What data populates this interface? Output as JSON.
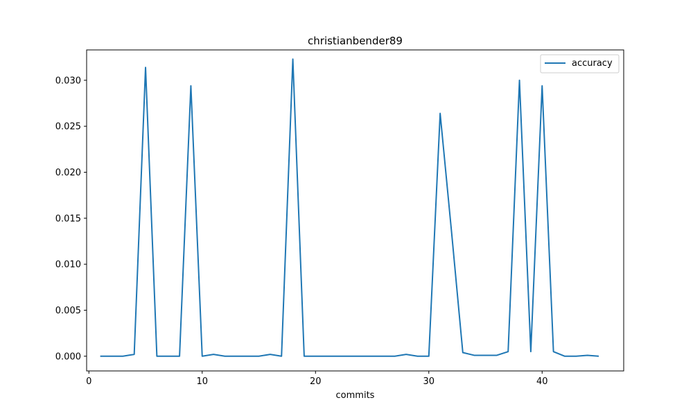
{
  "chart_data": {
    "type": "line",
    "title": "christianbender89",
    "xlabel": "commits",
    "ylabel": "",
    "xlim": [
      -0.2,
      47.2
    ],
    "ylim": [
      -0.0016,
      0.0333
    ],
    "xticks": [
      0,
      10,
      20,
      30,
      40
    ],
    "xtick_labels": [
      "0",
      "10",
      "20",
      "30",
      "40"
    ],
    "yticks": [
      0.0,
      0.005,
      0.01,
      0.015,
      0.02,
      0.025,
      0.03
    ],
    "ytick_labels": [
      "0.000",
      "0.005",
      "0.010",
      "0.015",
      "0.020",
      "0.025",
      "0.030"
    ],
    "grid": false,
    "legend_position": "top-right",
    "series": [
      {
        "name": "accuracy",
        "color": "#1f77b4",
        "x": [
          1,
          2,
          3,
          4,
          5,
          6,
          7,
          8,
          9,
          10,
          11,
          12,
          13,
          14,
          15,
          16,
          17,
          18,
          19,
          20,
          21,
          22,
          23,
          24,
          25,
          26,
          27,
          28,
          29,
          30,
          31,
          32,
          33,
          34,
          35,
          36,
          37,
          38,
          39,
          40,
          41,
          42,
          43,
          44,
          45
        ],
        "y": [
          0.0,
          0.0,
          0.0,
          0.0002,
          0.0314,
          0.0,
          0.0,
          0.0,
          0.0294,
          0.0,
          0.0002,
          0.0,
          0.0,
          0.0,
          0.0,
          0.0002,
          0.0,
          0.0323,
          0.0,
          0.0,
          0.0,
          0.0,
          0.0,
          0.0,
          0.0,
          0.0,
          0.0,
          0.0002,
          0.0,
          0.0,
          0.0264,
          0.0136,
          0.0004,
          0.0001,
          0.0001,
          0.0001,
          0.0005,
          0.03,
          0.0005,
          0.0294,
          0.0005,
          0.0,
          0.0,
          0.0001,
          0.0
        ]
      }
    ]
  }
}
